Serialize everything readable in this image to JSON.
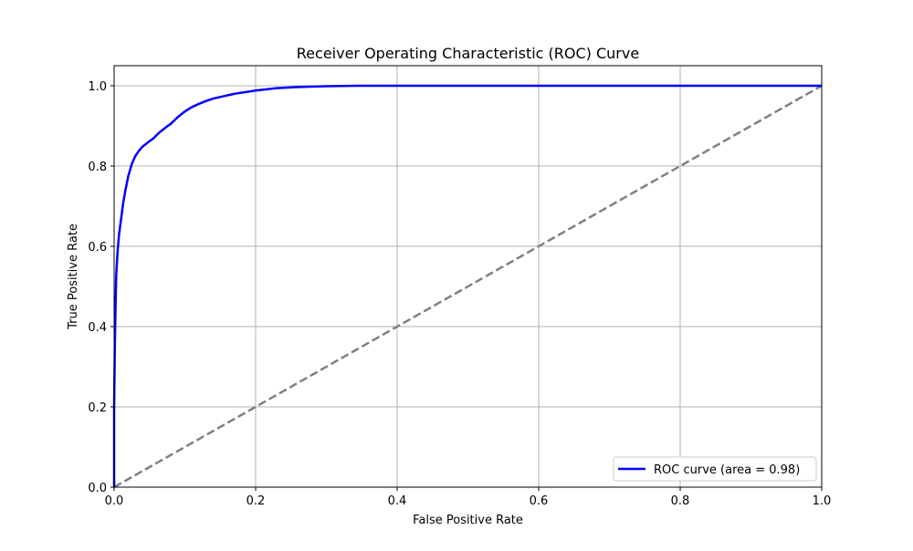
{
  "chart_data": {
    "type": "line",
    "title": "Receiver Operating Characteristic (ROC) Curve",
    "xlabel": "False Positive Rate",
    "ylabel": "True Positive Rate",
    "xlim": [
      0.0,
      1.0
    ],
    "ylim": [
      0.0,
      1.05
    ],
    "x_ticks": [
      0.0,
      0.2,
      0.4,
      0.6,
      0.8,
      1.0
    ],
    "x_tick_labels": [
      "0.0",
      "0.2",
      "0.4",
      "0.6",
      "0.8",
      "1.0"
    ],
    "y_ticks": [
      0.0,
      0.2,
      0.4,
      0.6,
      0.8,
      1.0
    ],
    "y_tick_labels": [
      "0.0",
      "0.2",
      "0.4",
      "0.6",
      "0.8",
      "1.0"
    ],
    "grid": true,
    "legend_position": "lower-right",
    "series": [
      {
        "name": "ROC curve (area = 0.98)",
        "color": "#0000ff",
        "style": "solid",
        "x": [
          0.0,
          0.0,
          0.001,
          0.002,
          0.003,
          0.005,
          0.007,
          0.01,
          0.013,
          0.016,
          0.02,
          0.025,
          0.03,
          0.035,
          0.04,
          0.045,
          0.05,
          0.055,
          0.06,
          0.065,
          0.07,
          0.075,
          0.08,
          0.09,
          0.1,
          0.11,
          0.12,
          0.13,
          0.14,
          0.15,
          0.17,
          0.2,
          0.23,
          0.26,
          0.3,
          0.35,
          0.4,
          0.5,
          0.6,
          0.7,
          0.8,
          0.9,
          1.0
        ],
        "y": [
          0.0,
          0.2,
          0.35,
          0.45,
          0.53,
          0.59,
          0.63,
          0.67,
          0.71,
          0.74,
          0.775,
          0.805,
          0.825,
          0.838,
          0.848,
          0.855,
          0.862,
          0.868,
          0.877,
          0.885,
          0.892,
          0.899,
          0.905,
          0.922,
          0.936,
          0.947,
          0.955,
          0.962,
          0.968,
          0.972,
          0.98,
          0.988,
          0.994,
          0.997,
          0.999,
          1.0,
          1.0,
          1.0,
          1.0,
          1.0,
          1.0,
          1.0,
          1.0
        ]
      },
      {
        "color": "#808080",
        "style": "dashed",
        "x": [
          0.0,
          1.0
        ],
        "y": [
          0.0,
          1.0
        ]
      }
    ]
  }
}
